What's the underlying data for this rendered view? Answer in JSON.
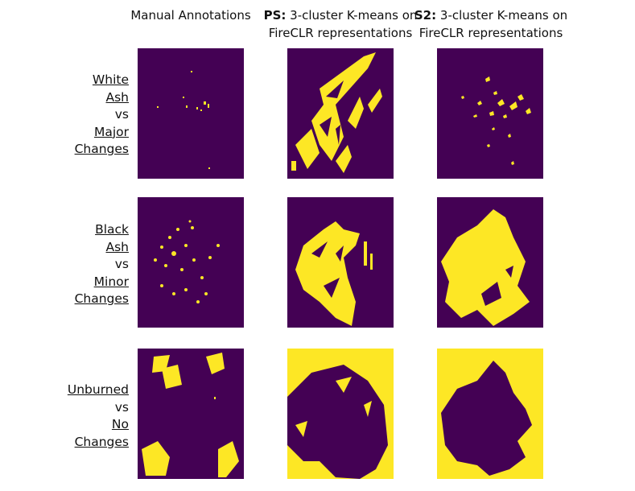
{
  "columns": [
    {
      "prefix": null,
      "text": "Manual Annotations"
    },
    {
      "prefix": "PS:",
      "text": "3-cluster K-means on FireCLR representations"
    },
    {
      "prefix": "S2:",
      "text": "3-cluster K-means on FireCLR representations"
    }
  ],
  "rows": [
    {
      "top": [
        "White",
        "Ash"
      ],
      "middle": "vs",
      "bottom": [
        "Major",
        "Changes"
      ]
    },
    {
      "top": [
        "Black",
        "Ash"
      ],
      "middle": "vs",
      "bottom": [
        "Minor",
        "Changes"
      ]
    },
    {
      "top": [
        "Unburned"
      ],
      "middle": "vs",
      "bottom": [
        "No",
        "Changes"
      ]
    }
  ]
}
